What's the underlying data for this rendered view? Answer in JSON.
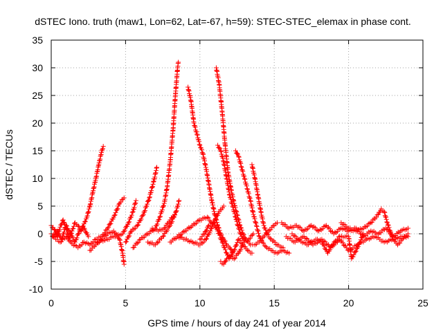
{
  "chart_data": {
    "type": "scatter",
    "title": "dSTEC Iono. truth (maw1, Lon=62, Lat=-67, h=59): STEC-STEC_elemax in phase cont.",
    "xlabel": "GPS time / hours of day 241 of year 2014",
    "ylabel": "dSTEC  / TECUs",
    "xlim": [
      0,
      25
    ],
    "ylim": [
      -10,
      35
    ],
    "x_ticks": [
      "0",
      "5",
      "10",
      "15",
      "20",
      "25"
    ],
    "y_ticks": [
      "-10",
      "-5",
      "0",
      "5",
      "10",
      "15",
      "20",
      "25",
      "30",
      "35"
    ],
    "grid": true,
    "marker": "plus",
    "color": "#ff0000",
    "series": [
      {
        "name": "",
        "points": [
          [
            0.0,
            1.5
          ],
          [
            0.2,
            0.8
          ],
          [
            0.4,
            -0.5
          ],
          [
            0.6,
            1.2
          ],
          [
            0.8,
            2.5
          ],
          [
            1.0,
            1.0
          ],
          [
            1.2,
            -0.8
          ],
          [
            1.4,
            0.5
          ],
          [
            1.6,
            2.0
          ],
          [
            1.8,
            1.5
          ],
          [
            2.0,
            0.5
          ],
          [
            2.2,
            1.8
          ],
          [
            2.4,
            3.0
          ],
          [
            2.6,
            5.0
          ],
          [
            2.8,
            7.5
          ],
          [
            3.0,
            10.0
          ],
          [
            3.2,
            12.5
          ],
          [
            3.4,
            15.0
          ],
          [
            3.5,
            15.8
          ]
        ]
      },
      {
        "name": "",
        "points": [
          [
            0.0,
            0.0
          ],
          [
            0.3,
            -1.0
          ],
          [
            0.6,
            -1.5
          ],
          [
            1.0,
            -0.5
          ],
          [
            1.4,
            -1.8
          ],
          [
            1.8,
            -2.5
          ],
          [
            2.2,
            -1.5
          ],
          [
            2.6,
            -2.0
          ],
          [
            3.0,
            -1.0
          ],
          [
            3.4,
            -0.5
          ],
          [
            3.8,
            1.0
          ],
          [
            4.2,
            3.0
          ],
          [
            4.6,
            5.5
          ],
          [
            4.9,
            6.5
          ]
        ]
      },
      {
        "name": "",
        "points": [
          [
            2.6,
            -3.0
          ],
          [
            3.0,
            -2.0
          ],
          [
            3.4,
            -1.0
          ],
          [
            3.8,
            0.0
          ],
          [
            4.2,
            0.5
          ],
          [
            4.6,
            -1.0
          ],
          [
            4.8,
            -3.5
          ],
          [
            4.9,
            -5.5
          ]
        ]
      },
      {
        "name": "",
        "points": [
          [
            3.0,
            -1.5
          ],
          [
            3.6,
            -1.2
          ],
          [
            4.2,
            -0.5
          ],
          [
            4.8,
            0.0
          ],
          [
            5.2,
            2.0
          ],
          [
            5.5,
            4.0
          ],
          [
            5.7,
            6.0
          ]
        ]
      },
      {
        "name": "",
        "points": [
          [
            5.0,
            -1.5
          ],
          [
            5.4,
            0.5
          ],
          [
            5.8,
            1.5
          ],
          [
            6.2,
            3.5
          ],
          [
            6.6,
            6.5
          ],
          [
            6.9,
            9.5
          ],
          [
            7.1,
            12.0
          ]
        ]
      },
      {
        "name": "",
        "points": [
          [
            5.5,
            -2.5
          ],
          [
            6.0,
            -1.0
          ],
          [
            6.5,
            0.0
          ],
          [
            7.0,
            1.0
          ],
          [
            7.3,
            3.0
          ],
          [
            7.6,
            5.5
          ],
          [
            7.8,
            8.5
          ],
          [
            8.0,
            13.0
          ],
          [
            8.2,
            19.0
          ],
          [
            8.35,
            25.0
          ],
          [
            8.5,
            30.0
          ],
          [
            8.55,
            31.0
          ]
        ]
      },
      {
        "name": "",
        "points": [
          [
            6.5,
            -1.5
          ],
          [
            7.0,
            -2.0
          ],
          [
            7.5,
            -0.5
          ],
          [
            8.0,
            1.5
          ],
          [
            8.4,
            4.0
          ],
          [
            8.6,
            6.0
          ]
        ]
      },
      {
        "name": "",
        "points": [
          [
            6.8,
            1.0
          ],
          [
            7.2,
            0.5
          ],
          [
            7.6,
            1.0
          ],
          [
            8.0,
            2.5
          ],
          [
            8.3,
            3.5
          ]
        ]
      },
      {
        "name": "",
        "points": [
          [
            9.2,
            26.5
          ],
          [
            9.4,
            24.0
          ],
          [
            9.6,
            20.0
          ],
          [
            9.8,
            18.0
          ],
          [
            10.0,
            16.0
          ],
          [
            10.2,
            14.5
          ],
          [
            10.4,
            12.0
          ],
          [
            10.6,
            9.0
          ],
          [
            10.8,
            6.0
          ],
          [
            11.0,
            3.5
          ],
          [
            11.2,
            1.5
          ],
          [
            11.4,
            0.0
          ],
          [
            11.6,
            -1.0
          ],
          [
            11.8,
            -2.0
          ],
          [
            12.0,
            -2.5
          ],
          [
            12.2,
            -3.5
          ]
        ]
      },
      {
        "name": "",
        "points": [
          [
            11.1,
            30.0
          ],
          [
            11.3,
            27.0
          ],
          [
            11.5,
            22.0
          ],
          [
            11.7,
            16.0
          ],
          [
            11.9,
            11.0
          ],
          [
            12.1,
            8.0
          ],
          [
            12.3,
            5.5
          ],
          [
            12.5,
            3.5
          ],
          [
            12.7,
            1.5
          ],
          [
            12.9,
            0.0
          ],
          [
            13.1,
            -1.0
          ],
          [
            13.4,
            -2.0
          ],
          [
            13.7,
            -2.0
          ],
          [
            14.0,
            -1.5
          ],
          [
            14.3,
            -0.5
          ],
          [
            14.6,
            0.5
          ],
          [
            15.0,
            1.5
          ],
          [
            15.2,
            2.0
          ]
        ]
      },
      {
        "name": "",
        "points": [
          [
            11.2,
            16.0
          ],
          [
            11.4,
            15.0
          ],
          [
            11.6,
            13.0
          ],
          [
            11.8,
            10.0
          ],
          [
            12.0,
            7.0
          ],
          [
            12.2,
            5.0
          ],
          [
            12.4,
            3.0
          ],
          [
            12.6,
            1.0
          ],
          [
            12.8,
            -0.5
          ],
          [
            13.0,
            -1.5
          ],
          [
            13.3,
            -1.0
          ],
          [
            13.6,
            0.0
          ]
        ]
      },
      {
        "name": "",
        "points": [
          [
            12.4,
            15.0
          ],
          [
            12.6,
            14.0
          ],
          [
            12.8,
            12.0
          ],
          [
            13.0,
            10.0
          ],
          [
            13.2,
            8.0
          ],
          [
            13.4,
            6.0
          ],
          [
            13.6,
            3.5
          ],
          [
            13.8,
            1.5
          ],
          [
            14.0,
            -0.5
          ],
          [
            14.2,
            -1.5
          ],
          [
            14.5,
            -2.5
          ],
          [
            14.8,
            -3.0
          ],
          [
            15.2,
            -3.5
          ],
          [
            15.6,
            -3.0
          ],
          [
            16.0,
            -3.5
          ]
        ]
      },
      {
        "name": "",
        "points": [
          [
            13.5,
            12.5
          ],
          [
            13.7,
            10.0
          ],
          [
            13.9,
            7.0
          ],
          [
            14.1,
            4.0
          ],
          [
            14.3,
            1.5
          ],
          [
            14.5,
            0.0
          ],
          [
            14.8,
            -1.0
          ],
          [
            15.2,
            -2.0
          ],
          [
            15.6,
            -2.5
          ]
        ]
      },
      {
        "name": "",
        "points": [
          [
            10.0,
            -1.0
          ],
          [
            10.3,
            0.0
          ],
          [
            10.6,
            1.5
          ],
          [
            10.9,
            2.0
          ],
          [
            11.2,
            0.5
          ],
          [
            11.5,
            -1.5
          ],
          [
            11.8,
            -3.5
          ],
          [
            12.0,
            -4.5
          ],
          [
            12.3,
            -3.0
          ],
          [
            12.6,
            -1.0
          ],
          [
            12.9,
            -2.0
          ],
          [
            13.2,
            -3.0
          ],
          [
            13.5,
            -3.5
          ]
        ]
      },
      {
        "name": "",
        "points": [
          [
            8.5,
            -0.5
          ],
          [
            9.0,
            -1.0
          ],
          [
            9.5,
            -1.5
          ],
          [
            10.0,
            -2.0
          ],
          [
            10.4,
            -1.0
          ],
          [
            10.7,
            0.5
          ],
          [
            11.0,
            2.5
          ],
          [
            11.3,
            4.0
          ],
          [
            11.6,
            5.0
          ]
        ]
      },
      {
        "name": "",
        "points": [
          [
            11.4,
            -5.0
          ],
          [
            11.6,
            -5.5
          ],
          [
            11.8,
            -4.5
          ],
          [
            12.0,
            -4.0
          ],
          [
            12.3,
            -4.5
          ],
          [
            12.6,
            -3.5
          ],
          [
            12.9,
            -2.0
          ]
        ]
      },
      {
        "name": "",
        "points": [
          [
            8.0,
            -1.5
          ],
          [
            8.5,
            -0.5
          ],
          [
            9.0,
            0.5
          ],
          [
            9.5,
            1.5
          ],
          [
            10.0,
            2.5
          ],
          [
            10.5,
            3.0
          ],
          [
            10.8,
            2.0
          ]
        ]
      },
      {
        "name": "",
        "points": [
          [
            15.5,
            2.0
          ],
          [
            16.0,
            1.0
          ],
          [
            16.5,
            1.5
          ],
          [
            17.0,
            0.5
          ],
          [
            17.5,
            1.5
          ],
          [
            18.0,
            0.5
          ],
          [
            18.5,
            1.5
          ],
          [
            19.0,
            0.0
          ],
          [
            19.5,
            1.0
          ],
          [
            20.0,
            0.5
          ],
          [
            20.5,
            1.0
          ],
          [
            21.0,
            -0.5
          ],
          [
            21.5,
            0.5
          ],
          [
            22.0,
            0.0
          ],
          [
            22.5,
            1.0
          ],
          [
            23.0,
            -0.5
          ],
          [
            23.5,
            0.5
          ],
          [
            24.0,
            1.0
          ]
        ]
      },
      {
        "name": "",
        "points": [
          [
            15.8,
            -0.5
          ],
          [
            16.4,
            -1.5
          ],
          [
            17.0,
            -0.5
          ],
          [
            17.6,
            -2.0
          ],
          [
            18.2,
            -1.0
          ],
          [
            18.8,
            -2.5
          ],
          [
            19.4,
            -1.0
          ],
          [
            20.0,
            -3.0
          ],
          [
            20.6,
            -2.0
          ],
          [
            21.2,
            -1.0
          ],
          [
            21.8,
            -0.5
          ],
          [
            22.4,
            -1.5
          ],
          [
            23.0,
            -1.0
          ],
          [
            23.6,
            -0.5
          ],
          [
            24.0,
            -0.5
          ]
        ]
      },
      {
        "name": "",
        "points": [
          [
            16.2,
            0.0
          ],
          [
            16.6,
            -1.0
          ],
          [
            17.2,
            -2.0
          ],
          [
            17.8,
            -1.0
          ],
          [
            18.2,
            -1.5
          ],
          [
            18.6,
            -3.5
          ],
          [
            18.9,
            -2.0
          ],
          [
            19.4,
            -0.5
          ],
          [
            20.0,
            -0.5
          ],
          [
            20.2,
            -4.5
          ],
          [
            20.6,
            -2.5
          ],
          [
            21.0,
            0.0
          ]
        ]
      },
      {
        "name": "",
        "points": [
          [
            19.5,
            2.0
          ],
          [
            20.0,
            1.0
          ],
          [
            20.5,
            0.5
          ],
          [
            21.0,
            1.0
          ],
          [
            21.5,
            2.0
          ],
          [
            22.0,
            3.5
          ],
          [
            22.2,
            4.5
          ],
          [
            22.4,
            4.0
          ],
          [
            22.6,
            2.0
          ],
          [
            22.8,
            0.5
          ],
          [
            23.0,
            -1.0
          ],
          [
            23.3,
            -2.0
          ],
          [
            23.6,
            -1.0
          ],
          [
            24.0,
            0.0
          ]
        ]
      },
      {
        "name": "",
        "points": [
          [
            0.1,
            -0.5
          ],
          [
            0.4,
            0.5
          ],
          [
            0.7,
            -1.0
          ],
          [
            1.0,
            1.5
          ],
          [
            1.3,
            0.0
          ],
          [
            1.6,
            -1.5
          ],
          [
            1.9,
            0.5
          ],
          [
            2.2,
            1.0
          ],
          [
            2.5,
            -0.5
          ]
        ]
      }
    ]
  }
}
